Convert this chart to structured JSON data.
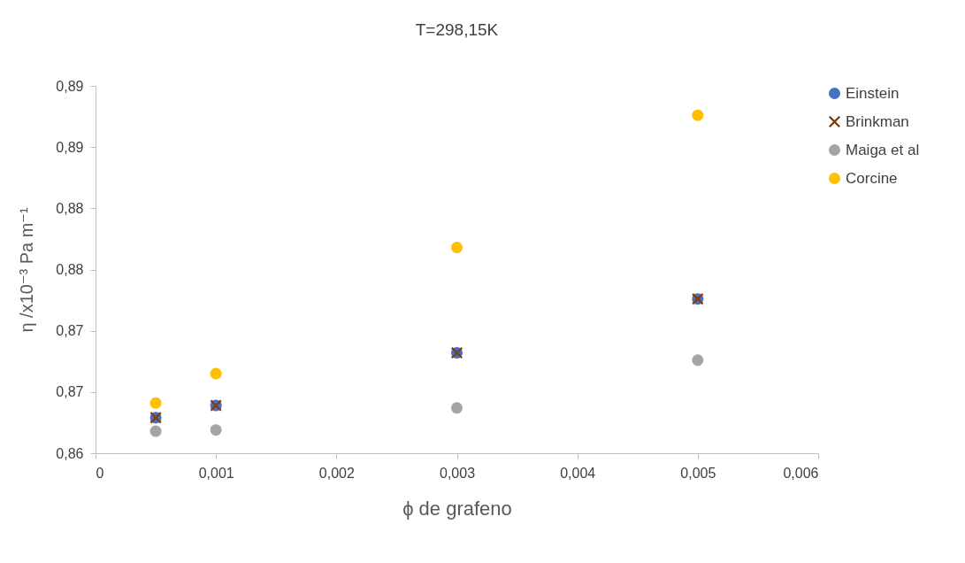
{
  "chart_data": {
    "type": "scatter",
    "title": "T=298,15K",
    "xlabel": "ϕ de grafeno",
    "ylabel": "η /x10⁻³ Pa m⁻¹",
    "x": [
      0.0005,
      0.001,
      0.003,
      0.005
    ],
    "series": [
      {
        "name": "Einstein",
        "color": "#4472c4",
        "marker": "circle",
        "values": [
          0.8629,
          0.8639,
          0.8682,
          0.8726
        ]
      },
      {
        "name": "Brinkman",
        "color": "#843c0c",
        "marker": "cross",
        "values": [
          0.8629,
          0.8639,
          0.8682,
          0.8726
        ]
      },
      {
        "name": "Maiga et al",
        "color": "#a5a5a5",
        "marker": "circle",
        "values": [
          0.8618,
          0.8619,
          0.8637,
          0.8676
        ]
      },
      {
        "name": "Corcine",
        "color": "#ffc000",
        "marker": "circle",
        "values": [
          0.8641,
          0.8665,
          0.8768,
          0.8876
        ]
      }
    ],
    "xlim": [
      0,
      0.006
    ],
    "xticks": [
      0,
      {
        "value": 0.001,
        "label": "0,001"
      },
      {
        "value": 0.002,
        "label": "0,002"
      },
      {
        "value": 0.003,
        "label": "0,003"
      },
      {
        "value": 0.004,
        "label": "0,004"
      },
      {
        "value": 0.005,
        "label": "0,005"
      },
      {
        "value": 0.006,
        "label": "0,006"
      }
    ],
    "ylim": [
      0.86,
      0.89
    ],
    "yticks": [
      {
        "value": 0.86,
        "label": "0,86"
      },
      {
        "value": 0.865,
        "label": "0,87"
      },
      {
        "value": 0.87,
        "label": "0,87"
      },
      {
        "value": 0.875,
        "label": "0,88"
      },
      {
        "value": 0.88,
        "label": "0,88"
      },
      {
        "value": 0.885,
        "label": "0,89"
      },
      {
        "value": 0.89,
        "label": "0,89"
      }
    ],
    "grid": false,
    "legend": "right"
  }
}
